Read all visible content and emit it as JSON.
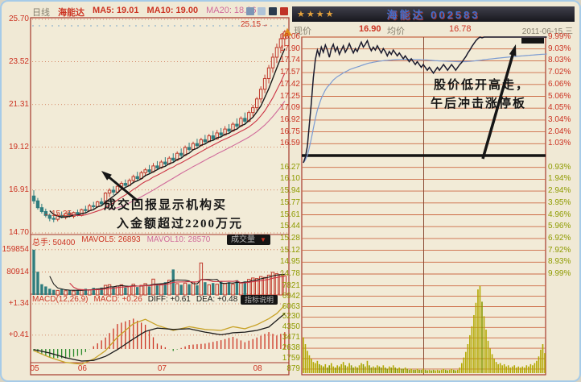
{
  "colors": {
    "up_red": "#c0392b",
    "down_teal": "#2f7d7e",
    "grid": "#cc6a44",
    "border": "#a5392c",
    "label_red": "#cc3322",
    "label_green": "#8f9b00",
    "magenta": "#d06a9a",
    "avg_blue": "#7b9bd2",
    "diff_yellow": "#c8a227",
    "black": "#1a1a1a",
    "vol_yellow": "#b3a800",
    "vol_olive": "#8a9a00",
    "panel_bg": "#f2ebd7"
  },
  "left_panel": {
    "header": {
      "period": "日线",
      "stock": "海能达",
      "ma5": "MA5: 19.01",
      "ma10": "MA10: 19.00",
      "ma20": "MA20: 18.06"
    },
    "y_axis": [
      "25.70",
      "23.52",
      "21.31",
      "19.12",
      "16.91",
      "14.70"
    ],
    "volume_axis": [
      "159854",
      "80914"
    ],
    "macd_axis": [
      "+1.34",
      "+0.41"
    ],
    "annotations": {
      "low_tag": "←15.25",
      "high_tag": "25.15→",
      "note_line1": "成交回报显示机构买",
      "note_line2": "入金额超过2200万元"
    },
    "volume_header": {
      "zongshou": "总手: 50400",
      "mavol5": "MAVOL5: 26893",
      "mavol10": "MAVOL10: 28570",
      "dropdown_label": "成交量",
      "dropdown_arrow": "▼"
    },
    "macd_header": {
      "name": "MACD(12,26,9)",
      "macd": "MACD: +0.26",
      "diff": "DIFF: +0.61",
      "dea": "DEA: +0.48",
      "button": "指标说明"
    }
  },
  "right_panel": {
    "stars": "★★★★",
    "title": "海能达 002583",
    "subheader": {
      "price_label": "现价",
      "price_value": "16.90",
      "avg_label": "均价",
      "avg_value": "16.78",
      "date": "2011-06-15,三"
    },
    "price_axis_up": [
      "18.06",
      "17.90",
      "17.74",
      "17.57",
      "17.42",
      "17.25",
      "17.09",
      "16.92",
      "16.75",
      "16.59"
    ],
    "price_axis_down": [
      "16.27",
      "16.10",
      "15.94",
      "15.77",
      "15.61",
      "15.44",
      "15.28",
      "15.12",
      "14.95",
      "14.78"
    ],
    "pct_axis_up": [
      "9.99%",
      "9.03%",
      "8.03%",
      "7.02%",
      "6.06%",
      "5.06%",
      "4.05%",
      "3.04%",
      "2.04%",
      "1.03%"
    ],
    "pct_axis_down": [
      "0.93%",
      "1.94%",
      "2.94%",
      "3.95%",
      "4.96%",
      "5.96%",
      "6.92%",
      "7.92%",
      "8.93%",
      "9.99%"
    ],
    "volume_axis": [
      "7821",
      "6942",
      "6063",
      "5230",
      "4350",
      "3471",
      "2638",
      "1759",
      "879"
    ],
    "annotation": {
      "line1": "股价低开高走，",
      "line2": "午后冲击涨停板"
    }
  },
  "chart_data": [
    {
      "type": "candlestick",
      "title": "海能达 日线 (daily)",
      "ylim": [
        14.7,
        25.7
      ],
      "y_ticks": [
        25.7,
        23.52,
        21.31,
        19.12,
        16.91,
        14.7
      ],
      "month_labels": [
        "05",
        "06",
        "07",
        "08"
      ],
      "month_tick_indices": [
        0,
        12,
        32,
        56
      ],
      "low_marker": 15.25,
      "high_marker": 25.15,
      "ma_periods": [
        5,
        10,
        20
      ],
      "candles": [
        [
          16.6,
          16.9,
          16.2,
          16.35
        ],
        [
          16.35,
          16.5,
          15.9,
          16.0
        ],
        [
          16.0,
          16.2,
          15.7,
          15.8
        ],
        [
          15.8,
          15.95,
          15.5,
          15.6
        ],
        [
          15.6,
          15.7,
          15.3,
          15.45
        ],
        [
          15.45,
          15.6,
          15.25,
          15.4
        ],
        [
          15.4,
          15.7,
          15.3,
          15.6
        ],
        [
          15.6,
          15.8,
          15.45,
          15.5
        ],
        [
          15.5,
          15.75,
          15.4,
          15.7
        ],
        [
          15.7,
          15.85,
          15.5,
          15.55
        ],
        [
          15.55,
          15.8,
          15.45,
          15.75
        ],
        [
          15.75,
          15.9,
          15.55,
          15.6
        ],
        [
          15.6,
          15.95,
          15.55,
          15.9
        ],
        [
          15.9,
          16.1,
          15.7,
          15.85
        ],
        [
          15.85,
          16.2,
          15.8,
          16.1
        ],
        [
          16.1,
          16.3,
          15.95,
          16.05
        ],
        [
          16.05,
          16.35,
          16.0,
          16.3
        ],
        [
          16.3,
          16.5,
          16.1,
          16.2
        ],
        [
          16.2,
          16.8,
          16.15,
          16.75
        ],
        [
          16.75,
          17.0,
          16.55,
          16.9
        ],
        [
          16.9,
          17.1,
          16.65,
          16.8
        ],
        [
          16.8,
          17.2,
          16.75,
          17.1
        ],
        [
          17.1,
          17.35,
          16.9,
          17.25
        ],
        [
          17.25,
          17.45,
          17.05,
          17.15
        ],
        [
          17.15,
          17.5,
          17.1,
          17.4
        ],
        [
          17.4,
          17.7,
          17.25,
          17.6
        ],
        [
          17.6,
          17.85,
          17.4,
          17.5
        ],
        [
          17.5,
          17.9,
          17.45,
          17.8
        ],
        [
          17.8,
          18.05,
          17.6,
          17.95
        ],
        [
          17.95,
          18.2,
          17.75,
          17.85
        ],
        [
          17.85,
          18.3,
          17.8,
          18.15
        ],
        [
          18.15,
          18.4,
          17.95,
          18.05
        ],
        [
          18.05,
          18.45,
          18.0,
          18.35
        ],
        [
          18.35,
          18.6,
          18.15,
          18.25
        ],
        [
          18.25,
          18.65,
          18.2,
          18.55
        ],
        [
          18.55,
          18.8,
          18.35,
          18.45
        ],
        [
          18.45,
          18.9,
          18.4,
          18.8
        ],
        [
          18.8,
          19.05,
          18.6,
          18.7
        ],
        [
          18.7,
          19.2,
          18.65,
          19.1
        ],
        [
          19.1,
          19.35,
          18.9,
          19.0
        ],
        [
          19.0,
          19.4,
          18.95,
          19.3
        ],
        [
          19.3,
          19.55,
          19.1,
          19.2
        ],
        [
          19.2,
          19.6,
          19.15,
          19.5
        ],
        [
          19.5,
          19.75,
          19.3,
          19.4
        ],
        [
          19.4,
          19.8,
          19.35,
          19.7
        ],
        [
          19.7,
          19.95,
          19.45,
          19.55
        ],
        [
          19.55,
          20.0,
          19.5,
          19.85
        ],
        [
          19.85,
          20.1,
          19.6,
          19.75
        ],
        [
          19.75,
          20.2,
          19.7,
          20.05
        ],
        [
          20.05,
          20.3,
          19.85,
          19.95
        ],
        [
          19.95,
          20.4,
          19.9,
          20.3
        ],
        [
          20.3,
          20.6,
          20.1,
          20.2
        ],
        [
          20.2,
          20.7,
          20.15,
          20.6
        ],
        [
          20.6,
          20.9,
          20.3,
          20.45
        ],
        [
          20.45,
          21.0,
          20.4,
          20.9
        ],
        [
          20.9,
          21.3,
          20.7,
          21.15
        ],
        [
          21.15,
          21.7,
          21.0,
          21.6
        ],
        [
          21.6,
          22.25,
          21.4,
          22.1
        ],
        [
          22.1,
          22.85,
          21.9,
          22.65
        ],
        [
          22.65,
          23.35,
          22.4,
          23.2
        ],
        [
          23.2,
          23.95,
          22.95,
          23.75
        ],
        [
          23.75,
          24.45,
          23.45,
          24.25
        ],
        [
          24.25,
          24.95,
          23.95,
          24.7
        ],
        [
          24.7,
          25.15,
          24.3,
          25.05
        ]
      ]
    },
    {
      "type": "bar",
      "name": "成交量 volume",
      "y_ticks": [
        159854,
        80914
      ],
      "ymax": 165000,
      "mavol_periods": [
        5,
        10
      ],
      "values": [
        159854,
        82000,
        38000,
        30000,
        22000,
        18000,
        16000,
        20000,
        15000,
        17000,
        14000,
        16000,
        19000,
        22000,
        18000,
        25000,
        21000,
        26000,
        34000,
        36000,
        28000,
        32000,
        36000,
        26000,
        30000,
        38000,
        28000,
        34000,
        40000,
        30000,
        56000,
        34000,
        38000,
        45000,
        52000,
        90000,
        40000,
        36000,
        42000,
        38000,
        45000,
        34000,
        113000,
        45000,
        36000,
        42000,
        38000,
        48000,
        40000,
        45000,
        38000,
        52000,
        42000,
        48000,
        55000,
        60000,
        58000,
        65000,
        62000,
        70000,
        80000,
        75000,
        72000,
        68000
      ]
    },
    {
      "type": "macd",
      "y_ticks": [
        1.34,
        0.41
      ],
      "diff_anchors": [
        [
          0,
          -0.05
        ],
        [
          4,
          -0.25
        ],
        [
          8,
          -0.4
        ],
        [
          12,
          -0.45
        ],
        [
          15,
          -0.3
        ],
        [
          18,
          -0.05
        ],
        [
          21,
          0.35
        ],
        [
          25,
          0.75
        ],
        [
          28,
          0.88
        ],
        [
          31,
          0.7
        ],
        [
          35,
          0.55
        ],
        [
          39,
          0.66
        ],
        [
          43,
          0.58
        ],
        [
          47,
          0.55
        ],
        [
          50,
          0.66
        ],
        [
          53,
          0.6
        ],
        [
          56,
          0.72
        ],
        [
          59,
          0.9
        ],
        [
          61,
          1.05
        ],
        [
          63,
          1.3
        ]
      ],
      "dea_anchors": [
        [
          0,
          -0.02
        ],
        [
          4,
          -0.12
        ],
        [
          8,
          -0.26
        ],
        [
          12,
          -0.36
        ],
        [
          15,
          -0.34
        ],
        [
          18,
          -0.22
        ],
        [
          21,
          -0.02
        ],
        [
          25,
          0.3
        ],
        [
          28,
          0.52
        ],
        [
          31,
          0.62
        ],
        [
          35,
          0.58
        ],
        [
          39,
          0.6
        ],
        [
          43,
          0.5
        ],
        [
          47,
          0.42
        ],
        [
          50,
          0.48
        ],
        [
          53,
          0.5
        ],
        [
          56,
          0.55
        ],
        [
          59,
          0.65
        ],
        [
          61,
          0.85
        ],
        [
          63,
          1.05
        ]
      ]
    },
    {
      "type": "line",
      "name": "分时 intraday 2011-06-15",
      "prev_close": 16.43,
      "limit_price": 18.06,
      "ylim": [
        14.78,
        18.06
      ],
      "price_rows": [
        18.06,
        17.9,
        17.74,
        17.57,
        17.42,
        17.25,
        17.09,
        16.92,
        16.75,
        16.59,
        16.43,
        16.27,
        16.1,
        15.94,
        15.77,
        15.61,
        15.44,
        15.28,
        15.12,
        14.95,
        14.78
      ],
      "vol_rows": [
        7821,
        6942,
        6063,
        5230,
        4350,
        3471,
        2638,
        1759,
        879
      ],
      "prices": [
        16.32,
        16.4,
        16.55,
        16.85,
        17.15,
        17.5,
        17.75,
        17.88,
        17.8,
        17.92,
        17.85,
        17.95,
        17.88,
        17.78,
        17.9,
        17.96,
        17.86,
        17.92,
        17.82,
        17.88,
        17.94,
        17.85,
        17.9,
        17.97,
        17.9,
        17.84,
        17.9,
        17.86,
        17.93,
        17.99,
        17.92,
        17.96,
        18.01,
        17.93,
        17.87,
        17.92,
        17.88,
        17.94,
        17.89,
        17.84,
        17.9,
        17.86,
        17.8,
        17.86,
        17.82,
        17.88,
        17.84,
        17.8,
        17.84,
        17.8,
        17.76,
        17.8,
        17.76,
        17.72,
        17.76,
        17.72,
        17.68,
        17.72,
        17.68,
        17.64,
        17.68,
        17.64,
        17.6,
        17.64,
        17.6,
        17.56,
        17.6,
        17.64,
        17.6,
        17.64,
        17.68,
        17.64,
        17.6,
        17.64,
        17.68,
        17.64,
        17.6,
        17.64,
        17.68,
        17.71,
        17.75,
        17.79,
        17.84,
        17.88,
        17.93,
        17.97,
        18.01,
        18.04,
        18.06,
        18.05,
        18.06,
        18.06,
        18.06,
        18.06,
        18.06,
        18.06,
        18.06,
        18.06,
        18.06,
        18.06,
        18.06,
        18.06,
        18.06,
        18.06,
        18.06,
        18.06,
        18.06,
        18.06,
        18.06,
        18.06,
        18.06,
        18.06,
        18.06,
        18.06,
        18.06,
        18.06,
        18.06,
        18.06,
        18.06,
        18.06,
        18.06,
        18.06
      ],
      "volumes": [
        3200,
        2600,
        2000,
        1600,
        1300,
        1000,
        900,
        1100,
        800,
        700,
        600,
        800,
        500,
        700,
        900,
        600,
        500,
        700,
        600,
        800,
        1000,
        700,
        600,
        900,
        700,
        500,
        600,
        500,
        700,
        900,
        800,
        600,
        1100,
        700,
        500,
        600,
        500,
        700,
        600,
        500,
        700,
        500,
        400,
        600,
        500,
        700,
        500,
        400,
        500,
        400,
        400,
        500,
        400,
        300,
        400,
        300,
        300,
        400,
        300,
        300,
        400,
        300,
        250,
        300,
        250,
        300,
        250,
        300,
        250,
        300,
        400,
        300,
        250,
        300,
        400,
        300,
        250,
        300,
        500,
        900,
        1400,
        1900,
        2600,
        3400,
        4200,
        5200,
        6300,
        7500,
        7821,
        6400,
        5100,
        3900,
        2900,
        2200,
        1700,
        1300,
        1000,
        800,
        900,
        700,
        800,
        600,
        700,
        500,
        600,
        700,
        500,
        600,
        500,
        600,
        500,
        700,
        600,
        800,
        700,
        900,
        1100,
        1500,
        2100,
        2600,
        1800
      ]
    }
  ]
}
